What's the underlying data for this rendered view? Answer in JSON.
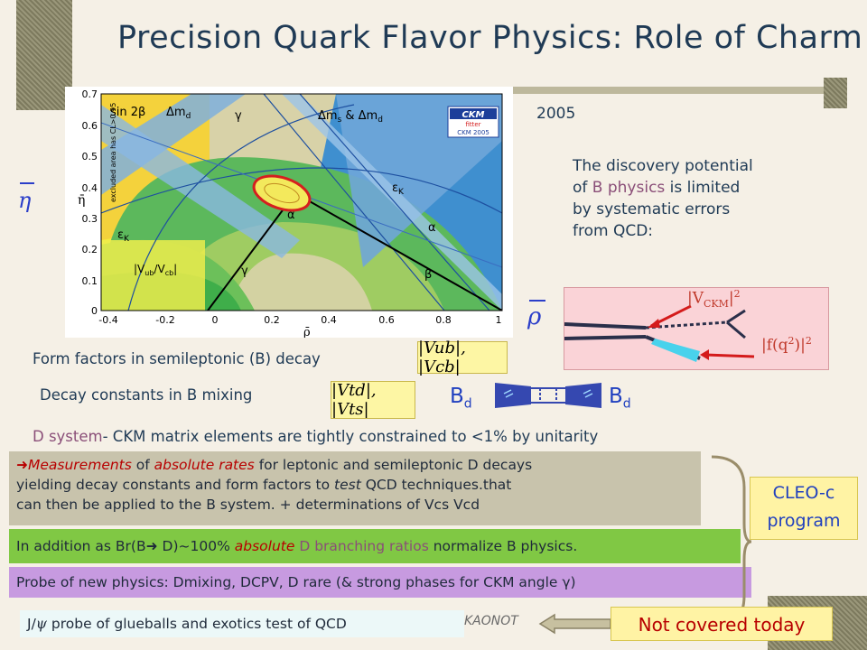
{
  "title": "Precision Quark Flavor Physics: Role of Charm",
  "year": "2005",
  "plot": {
    "labels": {
      "sin2beta": "sin 2β",
      "dmd": "Δm",
      "dmd_sub": "d",
      "gamma_top": "γ",
      "dms": "Δm",
      "dms_sub": "s",
      "dms_amp": " & Δm",
      "dms_sub2": "d",
      "excluded": "excluded area has CL>0.95",
      "epsk1": "ε",
      "epsk1_sub": "K",
      "epsk2": "ε",
      "epsk2_sub": "K",
      "alpha1": "α",
      "alpha2": "α",
      "vubvcb": "|V",
      "vubvcb_sub1": "ub",
      "vubvcb_mid": "/V",
      "vubvcb_sub2": "cb",
      "vubvcb_end": "|",
      "gamma_bot": "γ",
      "beta": "β",
      "ckm_logo_top": "CKM",
      "ckm_logo_sub": "fitter",
      "ckm_logo_year": "CKM 2005"
    },
    "y_axis_label": "η̄",
    "x_axis_label": "ρ̄",
    "y_ticks": [
      "0.7",
      "0.6",
      "0.5",
      "0.4",
      "0.3",
      "0.2",
      "0.1",
      "0"
    ],
    "x_ticks": [
      "-0.4",
      "-0.2",
      "0",
      "0.2",
      "0.4",
      "0.6",
      "0.8",
      "1"
    ]
  },
  "eta_symbol": "η",
  "rho_symbol": "ρ",
  "discovery": {
    "line1": "The discovery potential",
    "line2_a": "of ",
    "line2_b": "B physics",
    "line2_c": " is limited",
    "line3": "by systematic errors",
    "line4": "from QCD:"
  },
  "diagram": {
    "vckm": "|V",
    "vckm_sub": "CKM",
    "vckm_end": "|",
    "vckm_sup": "2",
    "fq2": "|f(q",
    "fq2_sup": "2",
    "fq2_end": ")|",
    "fq2_sup2": "2"
  },
  "form_factors": {
    "text": "Form factors in semileptonic (B) decay",
    "formula": "|Vub|, |Vcb|"
  },
  "decay_constants": {
    "text": "Decay constants in B mixing",
    "formula": "|Vtd|, |Vts|"
  },
  "mixing": {
    "bd": "B",
    "bd_sub": "d"
  },
  "dsystem": {
    "a": "D system",
    "b": "- CKM  matrix elements are tightly constrained to <1% by unitarity"
  },
  "measurements": {
    "arrow": "➜",
    "l1a": "Measurements",
    "l1b": " of ",
    "l1c": "absolute rates",
    "l1d": " for leptonic and semileptonic D decays",
    "l2a": "yielding decay constants and form factors to ",
    "l2b": "test",
    "l2c": " QCD techniques.that",
    "l3": "can then be applied to the B system. + determinations of Vcs Vcd"
  },
  "addition": {
    "a": "In addition as Br(B",
    "arrow": "➜",
    "b": " D)~100% ",
    "c": "absolute",
    "d": " D branching ratios",
    "e": " normalize B physics."
  },
  "probe": "Probe of new physics: Dmixing, DCPV, D rare  (& strong phases for CKM angle γ)",
  "jpsi": {
    "a": "J/",
    "psi": "ψ",
    "b": "  probe of glueballs and exotics test of QCD",
    "hidden": "KAONOT"
  },
  "cleoc": {
    "l1": "CLEO-c",
    "l2": "program"
  },
  "not_covered": "Not covered today"
}
